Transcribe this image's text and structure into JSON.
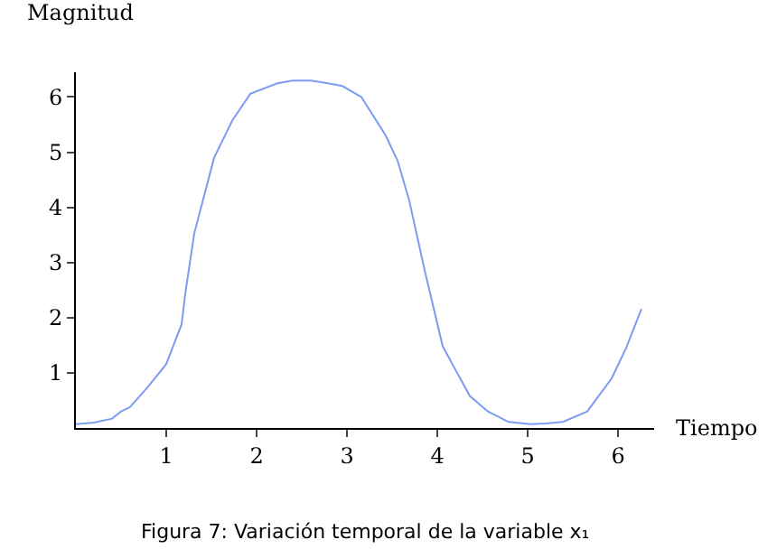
{
  "chart_data": {
    "type": "line",
    "xlabel": "Tiempo",
    "ylabel": "Magnitud",
    "annotations": [
      "Figura 7: Variación temporal de la variable x₁"
    ],
    "x": [
      0,
      0.2,
      0.4,
      0.5,
      0.6,
      0.8,
      1.0,
      1.17,
      1.21,
      1.31,
      1.53,
      1.73,
      1.93,
      2.23,
      2.4,
      2.6,
      2.79,
      2.95,
      3.16,
      3.43,
      3.56,
      3.69,
      3.86,
      4.06,
      4.36,
      4.56,
      4.79,
      5.03,
      5.2,
      5.39,
      5.66,
      5.93,
      6.09,
      6.26
    ],
    "series": [
      {
        "color": "#7b9cf0",
        "values": [
          0.07,
          0.1,
          0.17,
          0.3,
          0.38,
          0.75,
          1.16,
          1.88,
          2.43,
          3.53,
          4.9,
          5.57,
          6.06,
          6.25,
          6.3,
          6.3,
          6.25,
          6.2,
          6.0,
          5.3,
          4.85,
          4.12,
          2.86,
          1.48,
          0.58,
          0.3,
          0.11,
          0.07,
          0.08,
          0.11,
          0.3,
          0.9,
          1.45,
          2.16
        ]
      }
    ],
    "xlim": [
      0,
      6.4
    ],
    "ylim": [
      0,
      6.45
    ],
    "xticks": [
      1,
      2,
      3,
      4,
      5,
      6
    ],
    "yticks": [
      1,
      2,
      3,
      4,
      5,
      6
    ],
    "grid": false,
    "marker": "none",
    "line_style": "solid"
  }
}
